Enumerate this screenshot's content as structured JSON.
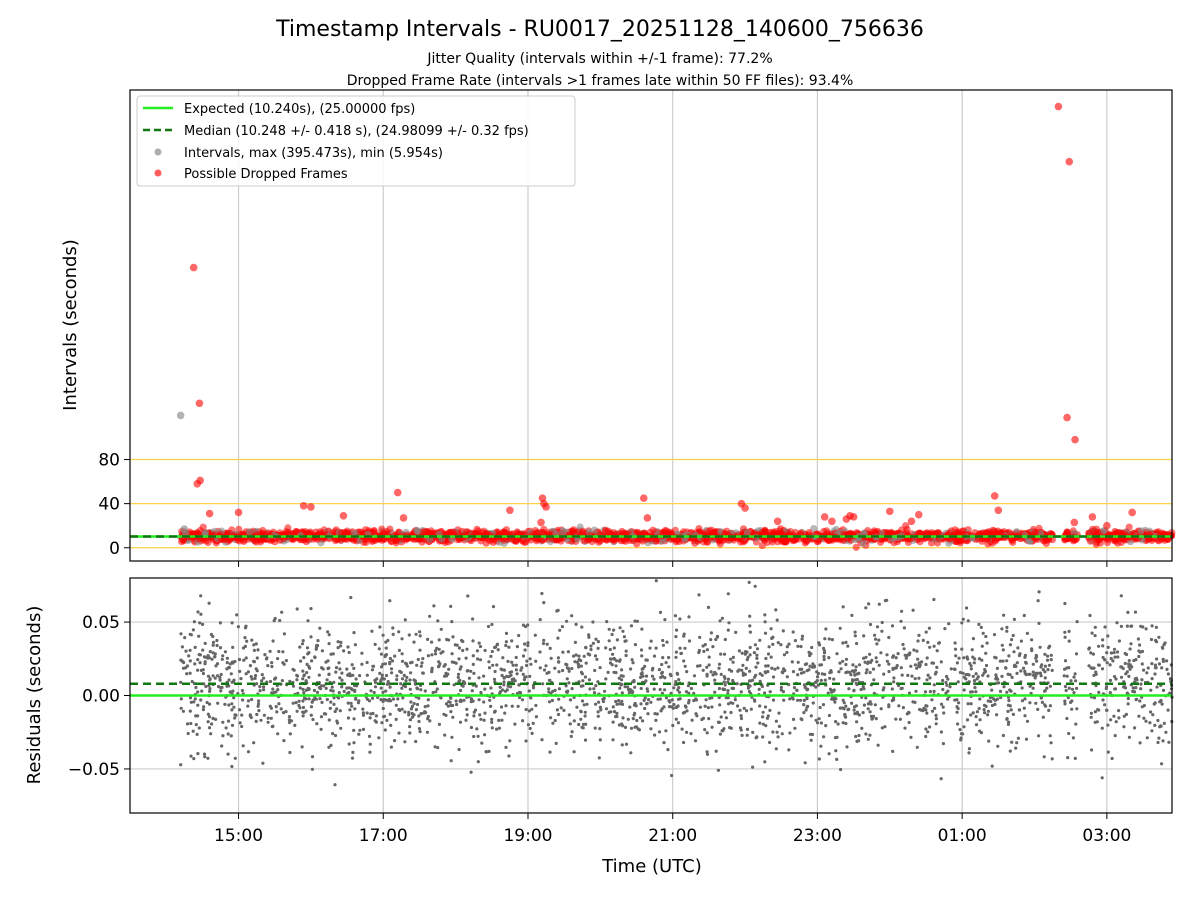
{
  "chart_data": {
    "type": "scatter",
    "title": "Timestamp Intervals - RU0017_20251128_140600_756636",
    "subtitles": [
      "Jitter Quality (intervals within +/-1 frame): 77.2%",
      "Dropped Frame Rate (intervals >1 frames late within 50 FF files): 93.4%"
    ],
    "xlabel": "Time (UTC)",
    "x_ticks": [
      "15:00",
      "17:00",
      "19:00",
      "21:00",
      "23:00",
      "01:00",
      "03:00"
    ],
    "x_tick_hours": [
      15,
      17,
      19,
      21,
      23,
      25,
      27
    ],
    "x_range_hours": [
      13.5,
      27.9
    ],
    "panels": [
      {
        "name": "intervals",
        "ylabel": "Intervals (seconds)",
        "ylim": [
          -12,
          415
        ],
        "y_ticks": [
          0,
          40,
          80
        ],
        "reference_lines": [
          0,
          40,
          80
        ],
        "reference_color": "#ffd24a",
        "expected_value": 10.24,
        "median_value": 10.248,
        "base_band": {
          "center": 10.5,
          "spread": 2.5
        },
        "dropped_points": [
          [
            14.38,
            254
          ],
          [
            14.43,
            58
          ],
          [
            14.46,
            131
          ],
          [
            14.47,
            61
          ],
          [
            14.6,
            31
          ],
          [
            15.0,
            32
          ],
          [
            15.9,
            38
          ],
          [
            16.0,
            37
          ],
          [
            16.45,
            29
          ],
          [
            17.2,
            50
          ],
          [
            17.28,
            27
          ],
          [
            18.75,
            34
          ],
          [
            19.2,
            45
          ],
          [
            19.22,
            40
          ],
          [
            19.25,
            37
          ],
          [
            19.18,
            23
          ],
          [
            20.6,
            45
          ],
          [
            20.65,
            27
          ],
          [
            21.95,
            40
          ],
          [
            22.0,
            36
          ],
          [
            22.45,
            24
          ],
          [
            23.1,
            28
          ],
          [
            23.2,
            24
          ],
          [
            23.4,
            26
          ],
          [
            23.45,
            29
          ],
          [
            23.5,
            28
          ],
          [
            24.0,
            33
          ],
          [
            24.3,
            24
          ],
          [
            24.4,
            30
          ],
          [
            25.45,
            47
          ],
          [
            25.5,
            34
          ],
          [
            26.33,
            400
          ],
          [
            26.48,
            350
          ],
          [
            26.45,
            118
          ],
          [
            26.56,
            98
          ],
          [
            26.55,
            23
          ],
          [
            26.8,
            28
          ],
          [
            27.0,
            20
          ],
          [
            27.35,
            32
          ]
        ],
        "gray_points": [
          [
            14.2,
            120
          ],
          [
            14.25,
            17
          ],
          [
            14.27,
            13
          ]
        ]
      },
      {
        "name": "residuals",
        "ylabel": "Residuals (seconds)",
        "ylim": [
          -0.08,
          0.08
        ],
        "y_ticks": [
          -0.05,
          0.0,
          0.05
        ],
        "y_tick_labels": [
          "−0.05",
          "0.00",
          "0.05"
        ],
        "expected_value": 0.0,
        "median_value": 0.008,
        "scatter": {
          "center": 0.008,
          "spread": 0.022
        }
      }
    ],
    "legend": {
      "position": "top-left",
      "entries": [
        {
          "label": "Expected (10.240s), (25.00000 fps)",
          "kind": "line",
          "color": "#22ee22"
        },
        {
          "label": "Median (10.248 +/- 0.418 s), (24.98099 +/- 0.32 fps)",
          "kind": "dashed",
          "color": "#117711"
        },
        {
          "label": "Intervals, max (395.473s), min (5.954s)",
          "kind": "marker",
          "color": "#999999"
        },
        {
          "label": "Possible Dropped Frames",
          "kind": "marker",
          "color": "#ff3333"
        }
      ]
    },
    "data_gaps_hours": [
      [
        26.25,
        26.4
      ],
      [
        26.6,
        26.75
      ]
    ],
    "grid": true,
    "colors": {
      "expected": "#22ee22",
      "median": "#117711",
      "interval": "#888888",
      "dropped": "#ff0000",
      "residual": "#666666"
    }
  }
}
